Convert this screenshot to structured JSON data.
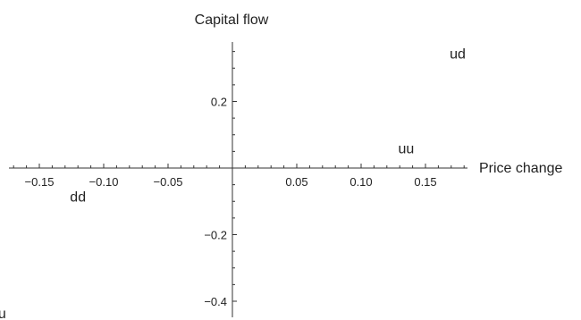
{
  "chart_data": {
    "type": "scatter",
    "xlabel": "Price change",
    "ylabel": "Capital flow",
    "xlim": [
      -0.19,
      0.19
    ],
    "ylim": [
      -0.465,
      0.375
    ],
    "grid": false,
    "points": [
      {
        "label": "ud",
        "x": 0.175,
        "y": 0.345
      },
      {
        "label": "uu",
        "x": 0.135,
        "y": 0.06
      },
      {
        "label": "dd",
        "x": -0.12,
        "y": -0.085
      },
      {
        "label": "du",
        "x": -0.182,
        "y": -0.435
      }
    ],
    "x_ticks": [
      {
        "value": -0.15,
        "label": "−0.15"
      },
      {
        "value": -0.1,
        "label": "−0.10"
      },
      {
        "value": -0.05,
        "label": "−0.05"
      },
      {
        "value": 0.05,
        "label": "0.05"
      },
      {
        "value": 0.1,
        "label": "0.10"
      },
      {
        "value": 0.15,
        "label": "0.15"
      }
    ],
    "y_ticks": [
      {
        "value": 0.2,
        "label": "0.2"
      },
      {
        "value": -0.2,
        "label": "−0.2"
      },
      {
        "value": -0.4,
        "label": "−0.4"
      }
    ],
    "x_minor_step": 0.01,
    "y_minor_step": 0.05
  }
}
